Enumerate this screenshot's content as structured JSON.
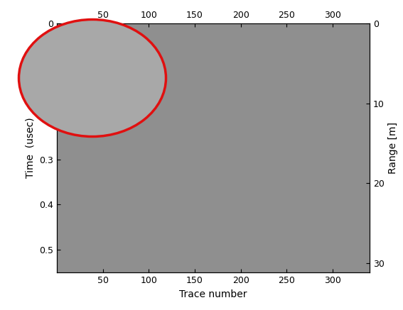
{
  "chart_data": {
    "type": "radargram",
    "xlabel": "Trace number",
    "ylabel": "Time  (usec)",
    "y2label": "Range [m]",
    "xlim": [
      0,
      340
    ],
    "xticks": [
      50,
      100,
      150,
      200,
      250,
      300
    ],
    "ylim": [
      0.55,
      0
    ],
    "yticks": [
      0,
      0.3,
      0.4,
      0.5
    ],
    "y2lim": [
      31.2,
      0
    ],
    "y2ticks": [
      0,
      10,
      20,
      30
    ],
    "grid": false
  }
}
